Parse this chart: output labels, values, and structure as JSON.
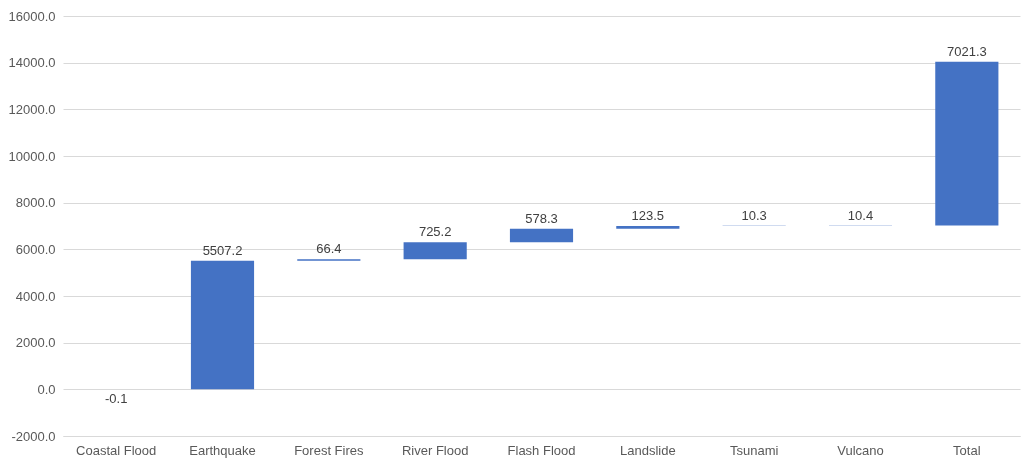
{
  "chart_data": {
    "type": "bar",
    "categories": [
      "Coastal Flood",
      "Earthquake",
      "Forest Fires",
      "River Flood",
      "Flash Flood",
      "Landslide",
      "Tsunami",
      "Vulcano",
      "Total"
    ],
    "values": [
      -0.1,
      5507.2,
      66.4,
      725.2,
      578.3,
      123.5,
      10.3,
      10.4,
      7021.3
    ],
    "base": [
      0,
      -0.1,
      5507.1,
      5573.5,
      6298.7,
      6877.0,
      7000.5,
      7010.8,
      7021.2
    ],
    "colors": [
      "#ed7d31",
      "#4472c4",
      "#4472c4",
      "#4472c4",
      "#4472c4",
      "#4472c4",
      "#4472c4",
      "#4472c4",
      "#4472c4"
    ],
    "ylim": [
      -2000,
      16000
    ],
    "yticks": [
      {
        "value": -2000,
        "label": "-2000.0"
      },
      {
        "value": 0,
        "label": "0.0"
      },
      {
        "value": 2000,
        "label": "2000.0"
      },
      {
        "value": 4000,
        "label": "4000.0"
      },
      {
        "value": 6000,
        "label": "6000.0"
      },
      {
        "value": 8000,
        "label": "8000.0"
      },
      {
        "value": 10000,
        "label": "10000.0"
      },
      {
        "value": 12000,
        "label": "12000.0"
      },
      {
        "value": 14000,
        "label": "14000.0"
      },
      {
        "value": 16000,
        "label": "16000.0"
      }
    ],
    "grid": true,
    "data_labels": true
  }
}
